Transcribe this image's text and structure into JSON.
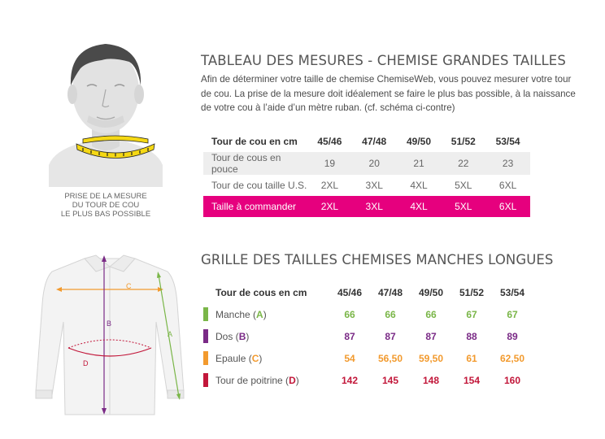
{
  "caption": [
    "PRISE DE LA MESURE",
    "DU TOUR DE COU",
    "LE PLUS BAS POSSIBLE"
  ],
  "section1": {
    "title": "TABLEAU DES MESURES - CHEMISE GRANDES TAILLES",
    "intro": "Afin de déterminer votre taille de chemise ChemiseWeb, vous pouvez mesurer votre tour de cou. La prise de la mesure doit idéalement se faire le plus bas possible, à la naissance de votre cou à l’aide d’un mètre ruban. (cf. schéma ci-contre)",
    "rows": [
      {
        "label": "Tour de cou en cm",
        "values": [
          "45/46",
          "47/48",
          "49/50",
          "51/52",
          "53/54"
        ]
      },
      {
        "label": "Tour de cous en pouce",
        "values": [
          "19",
          "20",
          "21",
          "22",
          "23"
        ]
      },
      {
        "label": "Tour de cou taille U.S.",
        "values": [
          "2XL",
          "3XL",
          "4XL",
          "5XL",
          "6XL"
        ]
      },
      {
        "label": "Taille à commander",
        "values": [
          "2XL",
          "3XL",
          "4XL",
          "5XL",
          "6XL"
        ]
      }
    ]
  },
  "section2": {
    "title": "GRILLE DES TAILLES CHEMISES MANCHES LONGUES",
    "header": {
      "label": "Tour de cous en cm",
      "values": [
        "45/46",
        "47/48",
        "49/50",
        "51/52",
        "53/54"
      ]
    },
    "rows": [
      {
        "name": "Manche",
        "letter": "A",
        "color": "#7ab648",
        "values": [
          "66",
          "66",
          "66",
          "67",
          "67"
        ]
      },
      {
        "name": "Dos",
        "letter": "B",
        "color": "#7a2a86",
        "values": [
          "87",
          "87",
          "87",
          "88",
          "89"
        ]
      },
      {
        "name": "Epaule",
        "letter": "C",
        "color": "#f29a2e",
        "values": [
          "54",
          "56,50",
          "59,50",
          "61",
          "62,50"
        ]
      },
      {
        "name": "Tour de poitrine",
        "letter": "D",
        "color": "#c2173a",
        "values": [
          "142",
          "145",
          "148",
          "154",
          "160"
        ]
      }
    ]
  },
  "colors": {
    "highlight": "#e6007e",
    "band": "#eeeeee",
    "tape": "#f5d814"
  },
  "icons": [
    "head-silhouette-icon",
    "tape-measure-icon",
    "shirt-diagram-icon"
  ]
}
